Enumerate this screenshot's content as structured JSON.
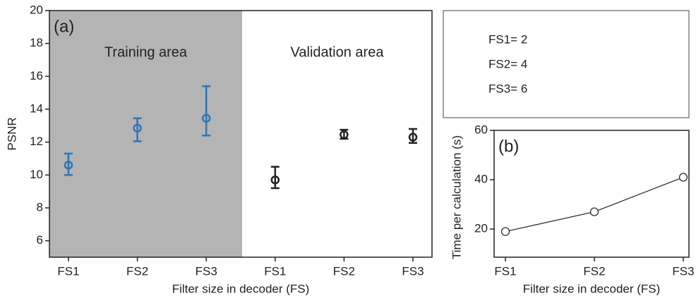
{
  "chart_data": [
    {
      "type": "errorbar",
      "annotation": "(a)",
      "ylabel": "PSNR",
      "xlabel": "Filter size in decoder (FS)",
      "categories": [
        "FS1",
        "FS2",
        "FS3",
        "FS1",
        "FS2",
        "FS3"
      ],
      "series": [
        {
          "name": "Training area",
          "color": "#2e75b6",
          "background": "#b4b4b4",
          "values": [
            10.6,
            12.85,
            13.45,
            null,
            null,
            null
          ],
          "low": [
            10.0,
            12.05,
            12.4,
            null,
            null,
            null
          ],
          "high": [
            11.3,
            13.45,
            15.4,
            null,
            null,
            null
          ]
        },
        {
          "name": "Validation area",
          "color": "#222222",
          "background": "#ffffff",
          "values": [
            null,
            null,
            null,
            9.7,
            12.45,
            12.3
          ],
          "low": [
            null,
            null,
            null,
            9.2,
            12.2,
            11.95
          ],
          "high": [
            null,
            null,
            null,
            10.5,
            12.75,
            12.8
          ]
        }
      ],
      "ylim": [
        5,
        20
      ],
      "yticks": [
        6,
        8,
        10,
        12,
        14,
        16,
        18,
        20
      ]
    },
    {
      "type": "line",
      "annotation": "(b)",
      "ylabel": "Time  per calculation (s)",
      "xlabel": "Filter size in decoder (FS)",
      "categories": [
        "FS1",
        "FS2",
        "FS3"
      ],
      "values": [
        19,
        27,
        41
      ],
      "color": "#222222",
      "ylim": [
        8.6,
        60
      ],
      "yticks": [
        20,
        40,
        60
      ],
      "notes": [
        "FS1= 2",
        "FS2= 4",
        "FS3= 6"
      ]
    }
  ]
}
